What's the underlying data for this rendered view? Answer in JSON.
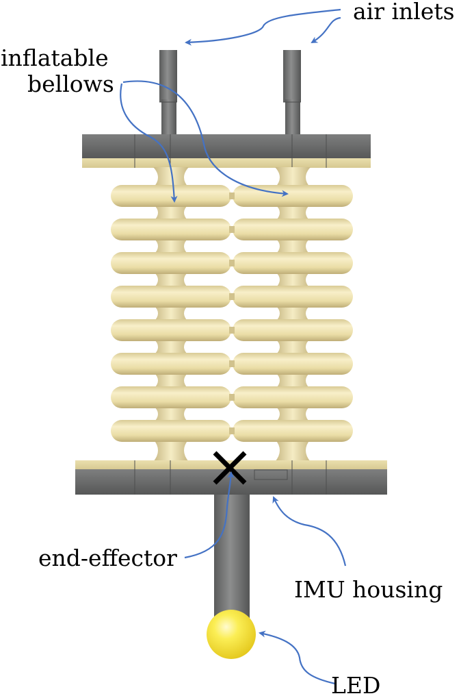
{
  "labels": {
    "air_inlets": "air inlets",
    "inflatable": "inflatable",
    "bellows": "bellows",
    "end_effector": "end-effector",
    "imu_housing": "IMU housing",
    "led": "LED"
  },
  "colors": {
    "background": "#ffffff",
    "plate_gray": "#6f7070",
    "plate_dark": "#555656",
    "bellows_cream": "#efe3b0",
    "bellows_shadow": "#c9b986",
    "annotation_arrow": "#4472c4",
    "led_yellow": "#f7e640",
    "marker": "#000000"
  },
  "bellows": {
    "columns": 2,
    "rings": 8
  }
}
